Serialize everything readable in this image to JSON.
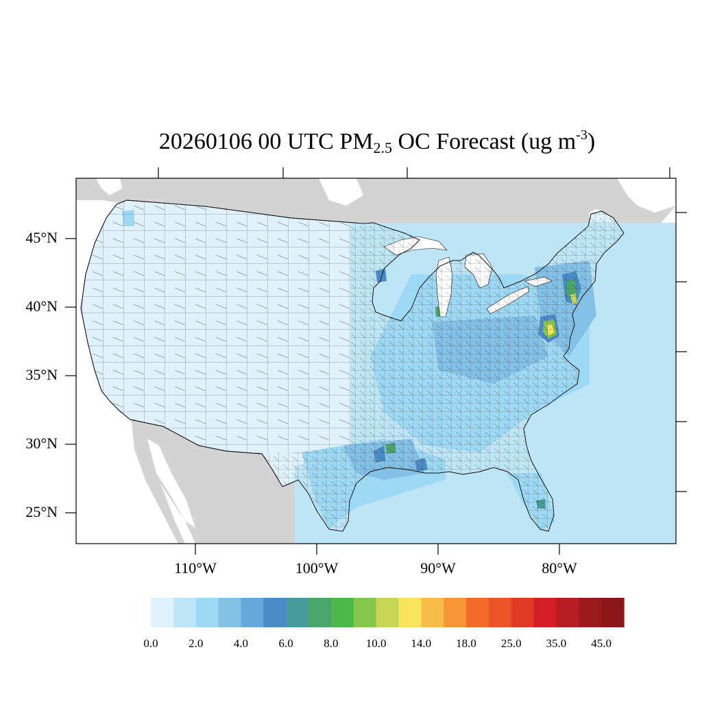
{
  "title": {
    "prefix": "20260106 00 UTC PM",
    "subscript": "2.5",
    "middle": " OC Forecast (ug m",
    "superscript": "-3",
    "suffix": ")"
  },
  "axes": {
    "lat_labels": [
      "45°N",
      "40°N",
      "35°N",
      "30°N",
      "25°N"
    ],
    "lat_values": [
      45,
      40,
      35,
      30,
      25
    ],
    "lon_labels": [
      "110°W",
      "100°W",
      "90°W",
      "80°W"
    ],
    "lon_values": [
      -110,
      -100,
      -90,
      -80
    ]
  },
  "colorbar": {
    "colors": [
      "#dff2fb",
      "#bee5f6",
      "#9dd9f5",
      "#82c0e6",
      "#65a8da",
      "#4a8cc7",
      "#469c9d",
      "#4aa66a",
      "#4cb84a",
      "#85c64d",
      "#c6d555",
      "#f8e45a",
      "#f8bd48",
      "#f79638",
      "#f26b29",
      "#eb5427",
      "#e03a25",
      "#d41f27",
      "#b81d23",
      "#9c1a1e",
      "#8b171a"
    ],
    "labels": [
      "0.0",
      "2.0",
      "4.0",
      "6.0",
      "8.0",
      "10.0",
      "14.0",
      "18.0",
      "25.0",
      "35.0",
      "45.0"
    ]
  },
  "map_colors": {
    "land_outside": "#d3d3d3",
    "water": "#ffffff",
    "background_level": "#dff2fb"
  },
  "hotspots": [
    {
      "region": "Maryland / DC",
      "level": "14.0"
    },
    {
      "region": "Eastern Pennsylvania",
      "level": "8.0"
    },
    {
      "region": "East Texas",
      "level": "8.0"
    },
    {
      "region": "Chicago area",
      "level": "8.0"
    }
  ]
}
